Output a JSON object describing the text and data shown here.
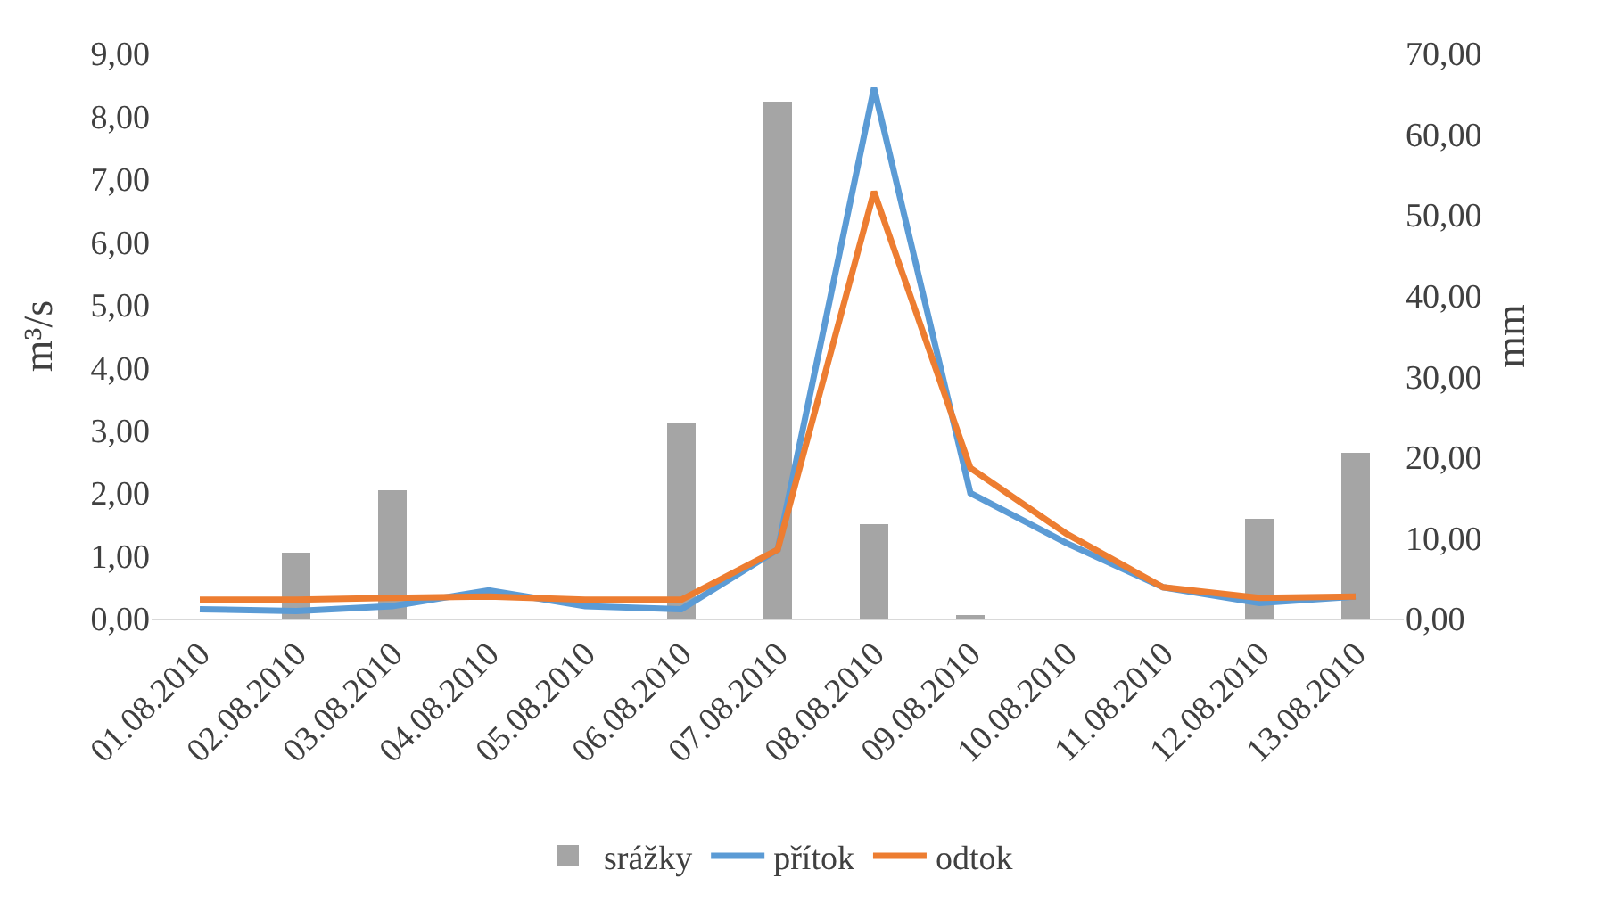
{
  "chart_data": {
    "type": "line",
    "ylabel": "m³/s",
    "y2label": "mm",
    "categories": [
      "01.08.2010",
      "02.08.2010",
      "03.08.2010",
      "04.08.2010",
      "05.08.2010",
      "06.08.2010",
      "07.08.2010",
      "08.08.2010",
      "09.08.2010",
      "10.08.2010",
      "11.08.2010",
      "12.08.2010",
      "13.08.2010"
    ],
    "series": [
      {
        "name": "srážky",
        "type": "bar",
        "axis": "y2",
        "color": "#a5a5a5",
        "values": [
          0,
          8.2,
          15.8,
          0,
          0,
          24.2,
          64,
          11.8,
          0.5,
          0,
          0,
          12.4,
          20.6
        ]
      },
      {
        "name": "přítok",
        "color": "#5b9bd5",
        "values": [
          0.15,
          0.12,
          0.2,
          0.45,
          0.2,
          0.15,
          1.1,
          8.45,
          2.0,
          1.2,
          0.5,
          0.25,
          0.35
        ]
      },
      {
        "name": "odtok",
        "color": "#ed7d31",
        "values": [
          0.3,
          0.3,
          0.33,
          0.35,
          0.3,
          0.3,
          1.1,
          6.8,
          2.4,
          1.35,
          0.5,
          0.33,
          0.35
        ]
      }
    ],
    "ylim": [
      0,
      9
    ],
    "yticks": [
      {
        "value": 0,
        "label": "0,00"
      },
      {
        "value": 1,
        "label": "1,00"
      },
      {
        "value": 2,
        "label": "2,00"
      },
      {
        "value": 3,
        "label": "3,00"
      },
      {
        "value": 4,
        "label": "4,00"
      },
      {
        "value": 5,
        "label": "5,00"
      },
      {
        "value": 6,
        "label": "6,00"
      },
      {
        "value": 7,
        "label": "7,00"
      },
      {
        "value": 8,
        "label": "8,00"
      },
      {
        "value": 9,
        "label": "9,00"
      }
    ],
    "y2lim": [
      0,
      70
    ],
    "y2ticks": [
      {
        "value": 0,
        "label": "0,00"
      },
      {
        "value": 10,
        "label": "10,00"
      },
      {
        "value": 20,
        "label": "20,00"
      },
      {
        "value": 30,
        "label": "30,00"
      },
      {
        "value": 40,
        "label": "40,00"
      },
      {
        "value": 50,
        "label": "50,00"
      },
      {
        "value": 60,
        "label": "60,00"
      },
      {
        "value": 70,
        "label": "70,00"
      }
    ],
    "legend": "bottom",
    "grid": false
  }
}
